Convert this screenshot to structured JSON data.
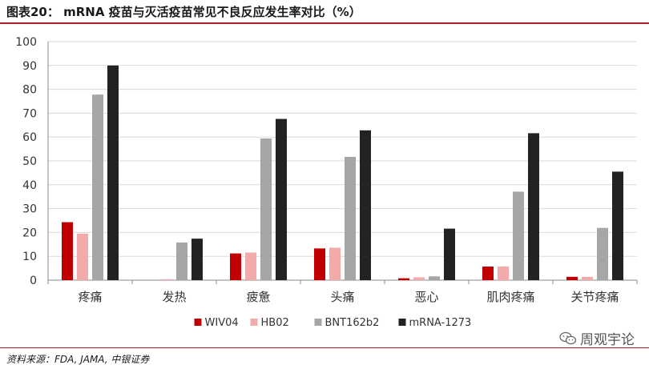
{
  "header": {
    "title": "图表20： mRNA 疫苗与灭活疫苗常见不良反应发生率对比（%）"
  },
  "footer": {
    "source": "资料来源：FDA, JAMA, 中银证券",
    "watermark": "周观宇论"
  },
  "colors": {
    "accent": "#a6262a",
    "WIV04": "#c00000",
    "HB02": "#f2aaaa",
    "BNT162b2": "#a6a6a6",
    "mRNA-1273": "#222222"
  },
  "chart_data": {
    "type": "bar",
    "categories": [
      "疼痛",
      "发热",
      "疲惫",
      "头痛",
      "恶心",
      "肌肉疼痛",
      "关节疼痛"
    ],
    "series": [
      {
        "name": "WIV04",
        "values": [
          24.3,
          0,
          11.2,
          13.3,
          0.8,
          5.7,
          1.4
        ]
      },
      {
        "name": "HB02",
        "values": [
          19.5,
          0.4,
          11.6,
          13.6,
          1.2,
          5.7,
          1.4
        ]
      },
      {
        "name": "BNT162b2",
        "values": [
          77.8,
          15.8,
          59.4,
          51.7,
          1.6,
          37.1,
          21.9
        ]
      },
      {
        "name": "mRNA-1273",
        "values": [
          90.0,
          17.4,
          67.6,
          62.8,
          21.6,
          61.6,
          45.5
        ]
      }
    ],
    "ylim": [
      0,
      100
    ],
    "yticks": [
      "0",
      "10",
      "20",
      "30",
      "40",
      "50",
      "60",
      "70",
      "80",
      "90",
      "100"
    ],
    "grid": true,
    "legend": "bottom"
  }
}
